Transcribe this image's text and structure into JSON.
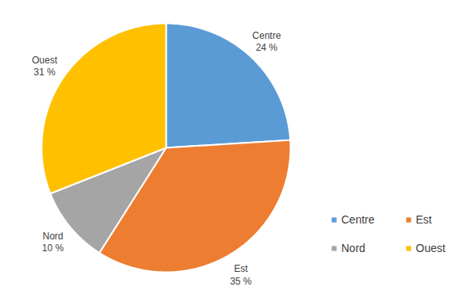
{
  "chart_data": {
    "type": "pie",
    "categories": [
      "Centre",
      "Est",
      "Nord",
      "Ouest"
    ],
    "values": [
      24,
      35,
      10,
      31
    ],
    "value_labels": [
      "24 %",
      "35 %",
      "10 %",
      "31 %"
    ],
    "colors": [
      "#5b9bd5",
      "#ed7d31",
      "#a5a5a5",
      "#ffc000"
    ],
    "data_labels": true,
    "legend": "right"
  }
}
